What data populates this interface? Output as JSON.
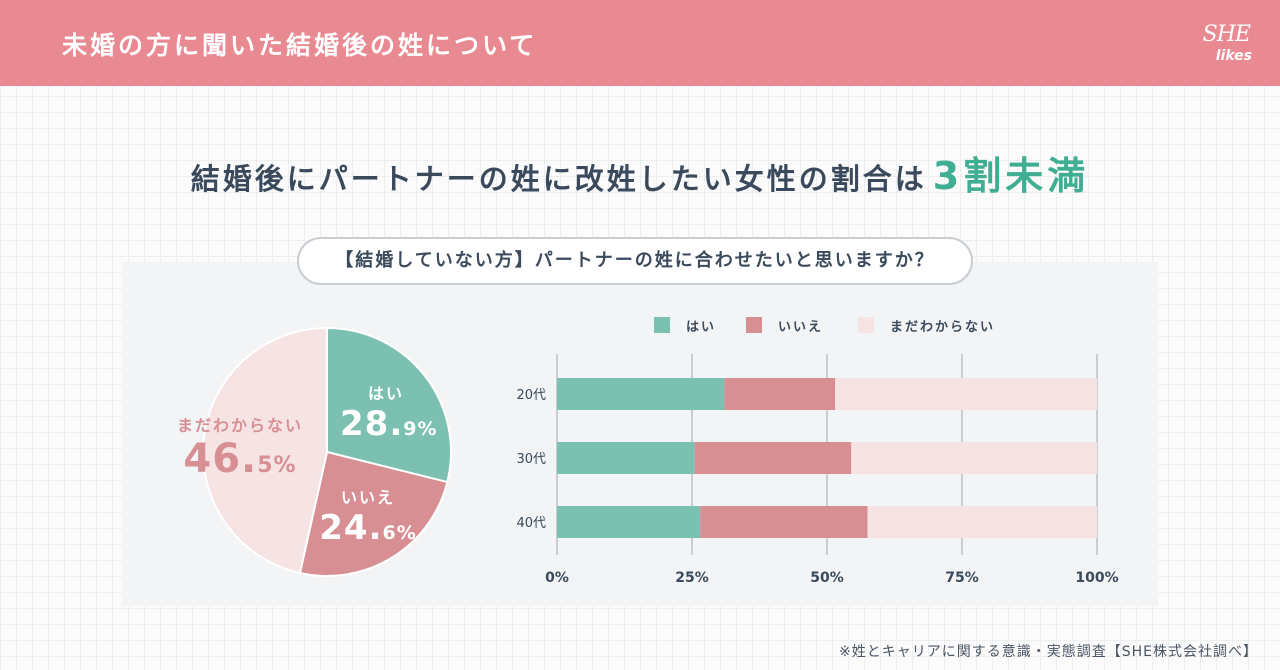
{
  "header": {
    "title": "未婚の方に聞いた結婚後の姓について",
    "logo_main": "SHE",
    "logo_sub": "likes"
  },
  "headline": {
    "text": "結婚後にパートナーの姓に改姓したい女性の割合は",
    "accent": "3割未満"
  },
  "question": "【結婚していない方】パートナーの姓に合わせたいと思いますか？",
  "colors": {
    "yes": "#7bc0b0",
    "no": "#d88f94",
    "unsure": "#f6e3e4",
    "text": "#3a4a5c",
    "accent": "#3fae92",
    "header": "#e98a93"
  },
  "legend": [
    "はい",
    "いいえ",
    "まだわからない"
  ],
  "pie_labels": {
    "yes": {
      "name": "はい",
      "int": "28.",
      "dec": "9%"
    },
    "no": {
      "name": "いいえ",
      "int": "24.",
      "dec": "6%"
    },
    "unsure": {
      "name": "まだわからない",
      "int": "46.",
      "dec": "5%"
    }
  },
  "chart_data": [
    {
      "type": "pie",
      "categories": [
        "はい",
        "いいえ",
        "まだわからない"
      ],
      "values": [
        28.9,
        24.6,
        46.5
      ],
      "unit": "%"
    },
    {
      "type": "bar",
      "orientation": "horizontal",
      "stacked": true,
      "categories": [
        "20代",
        "30代",
        "40代"
      ],
      "series": [
        {
          "name": "はい",
          "values": [
            31,
            25.5,
            26.5
          ]
        },
        {
          "name": "いいえ",
          "values": [
            20.5,
            29,
            31
          ]
        },
        {
          "name": "まだわからない",
          "values": [
            48.5,
            45.5,
            42.5
          ]
        }
      ],
      "xlim": [
        0,
        100
      ],
      "xticks": [
        "0%",
        "25%",
        "50%",
        "75%",
        "100%"
      ],
      "legend_position": "top"
    }
  ],
  "source": "※姓とキャリアに関する意識・実態調査【SHE株式会社調べ】"
}
